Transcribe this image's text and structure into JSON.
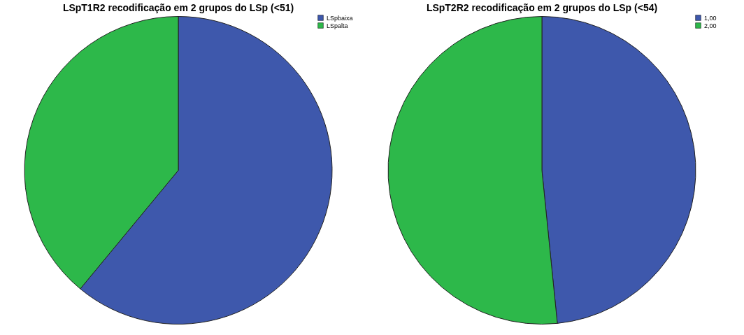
{
  "chart_data": [
    {
      "type": "pie",
      "title": "LSpT1R2 recodificação em 2 grupos do LSp (<51)",
      "categories": [
        "LSpbaixa",
        "LSpalta"
      ],
      "values": [
        61,
        39
      ],
      "colors": [
        "#3e58ac",
        "#2db84a"
      ],
      "legend": "top right"
    },
    {
      "type": "pie",
      "title": "LSpT2R2 recodificação em 2 grupos do LSp (<54)",
      "categories": [
        "1,00",
        "2,00"
      ],
      "values": [
        48.4,
        51.6
      ],
      "colors": [
        "#3e58ac",
        "#2db84a"
      ],
      "legend": "top right"
    }
  ]
}
